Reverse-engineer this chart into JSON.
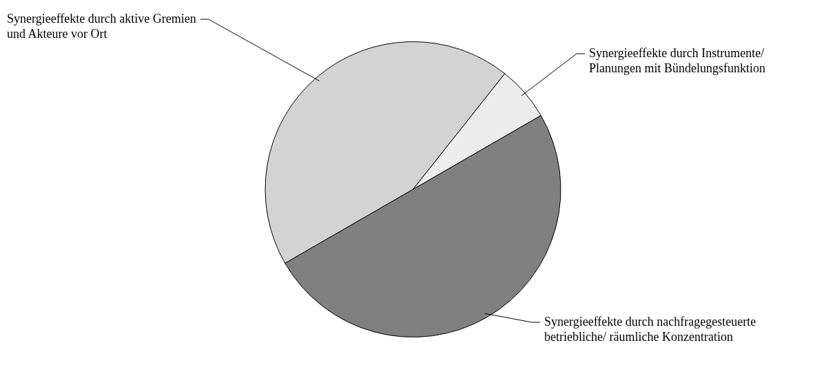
{
  "chart_data": {
    "type": "pie",
    "categories": [
      "Synergieeffekte durch aktive Gremien und Akteure vor Ort",
      "Synergieeffekte durch Instrumente/ Planungen mit Bündelungsfunktion",
      "Synergieeffekte durch nachfragegesteuerte betriebliche/ räumliche Konzentration"
    ],
    "values": [
      44,
      6,
      50
    ],
    "colors": [
      "#d3d3d3",
      "#ececec",
      "#808080"
    ],
    "legend": false
  }
}
